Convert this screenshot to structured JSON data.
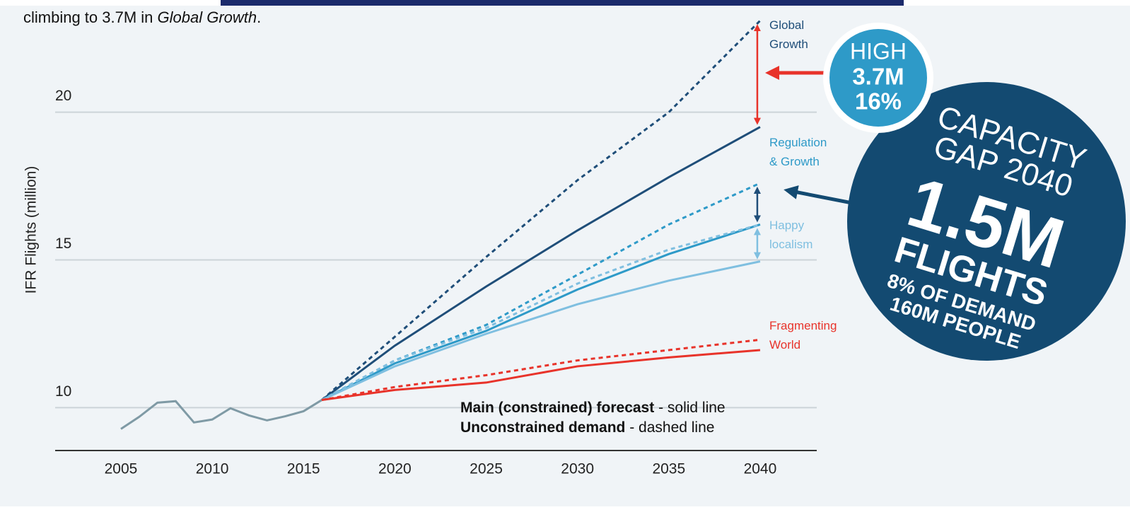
{
  "chart_data": {
    "type": "line",
    "intro": [
      "climbing to 3.7M in ",
      "Global Growth",
      "."
    ],
    "y_label": "IFR Flights (million)",
    "x": [
      2005,
      2006,
      2007,
      2008,
      2009,
      2010,
      2011,
      2012,
      2013,
      2014,
      2015,
      2016,
      2020,
      2025,
      2030,
      2035,
      2040
    ],
    "xlim": [
      2001.4,
      2043.1
    ],
    "xticks": [
      2005,
      2010,
      2015,
      2020,
      2025,
      2030,
      2035,
      2040
    ],
    "ylim": [
      8.55,
      23.2
    ],
    "yticks": [
      10,
      15,
      20
    ],
    "grid": true,
    "history": {
      "color": "#7f9aa5",
      "values": [
        9.28,
        9.69,
        10.17,
        10.22,
        9.5,
        9.6,
        9.98,
        9.74,
        9.57,
        9.71,
        9.88,
        10.26,
        null,
        null,
        null,
        null,
        null
      ]
    },
    "scenarios": [
      {
        "name": "Global Growth",
        "color": "#1f4e79",
        "constrained": [
          null,
          null,
          null,
          null,
          null,
          null,
          null,
          null,
          null,
          null,
          null,
          10.26,
          12.1,
          14.1,
          16.0,
          17.8,
          19.5
        ],
        "unconstrained": [
          null,
          null,
          null,
          null,
          null,
          null,
          null,
          null,
          null,
          null,
          null,
          10.26,
          12.4,
          15.1,
          17.7,
          20.0,
          23.1
        ]
      },
      {
        "name": "Regulation & Growth",
        "color": "#2e9ac8",
        "constrained": [
          null,
          null,
          null,
          null,
          null,
          null,
          null,
          null,
          null,
          null,
          null,
          10.26,
          11.5,
          12.6,
          14.0,
          15.2,
          16.2
        ],
        "unconstrained": [
          null,
          null,
          null,
          null,
          null,
          null,
          null,
          null,
          null,
          null,
          null,
          10.26,
          11.6,
          12.8,
          14.5,
          16.2,
          17.6
        ]
      },
      {
        "name": "Happy localism",
        "color": "#7fbfe0",
        "constrained": [
          null,
          null,
          null,
          null,
          null,
          null,
          null,
          null,
          null,
          null,
          null,
          10.26,
          11.4,
          12.5,
          13.5,
          14.3,
          14.95
        ],
        "unconstrained": [
          null,
          null,
          null,
          null,
          null,
          null,
          null,
          null,
          null,
          null,
          null,
          10.26,
          11.6,
          12.7,
          14.2,
          15.35,
          16.2
        ]
      },
      {
        "name": "Fragmenting World",
        "color": "#e8332a",
        "constrained": [
          null,
          null,
          null,
          null,
          null,
          null,
          null,
          null,
          null,
          null,
          null,
          10.26,
          10.6,
          10.85,
          11.4,
          11.7,
          11.95
        ],
        "unconstrained": [
          null,
          null,
          null,
          null,
          null,
          null,
          null,
          null,
          null,
          null,
          null,
          10.26,
          10.7,
          11.1,
          11.6,
          11.95,
          12.3
        ]
      }
    ],
    "note": [
      [
        "Main (constrained) forecast",
        " - solid line"
      ],
      [
        "Unconstrained demand",
        " - dashed line"
      ]
    ],
    "badge": [
      "HIGH",
      "3.7M",
      "16%"
    ],
    "gap": [
      "CAPACITY",
      "GAP 2040",
      "1.5M",
      "FLIGHTS",
      "8% OF DEMAND",
      "160M PEOPLE"
    ]
  }
}
